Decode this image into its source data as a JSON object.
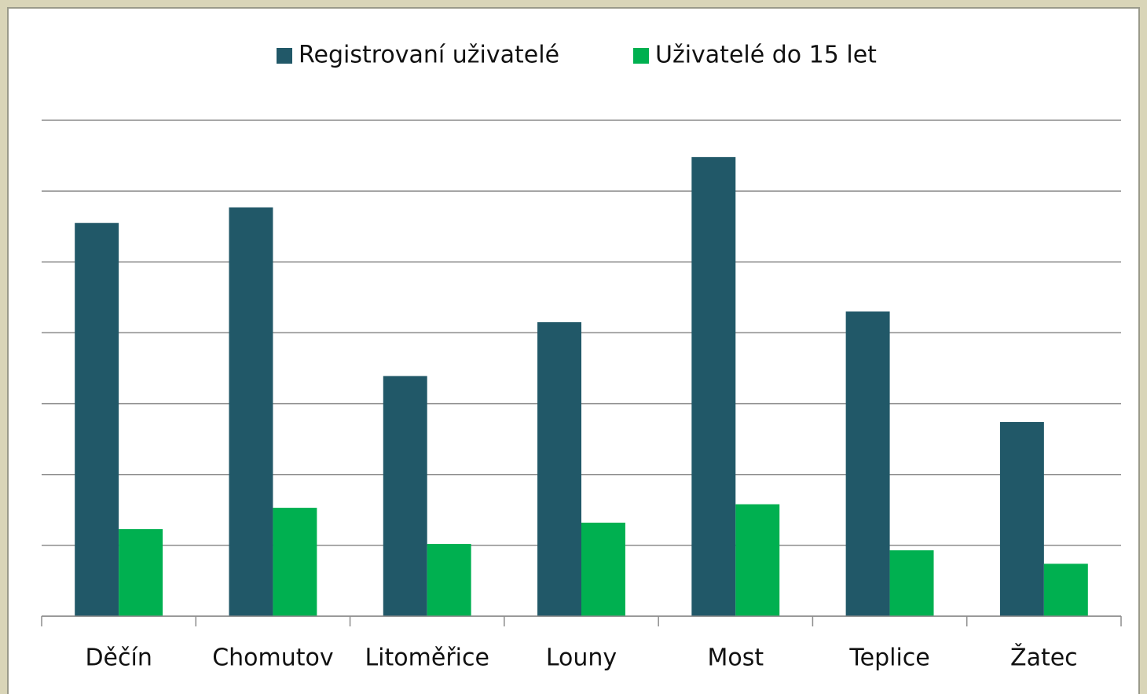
{
  "chart_data": {
    "type": "bar",
    "categories": [
      "Děčín",
      "Chomutov",
      "Litoměřice",
      "Louny",
      "Most",
      "Teplice",
      "Žatec"
    ],
    "series": [
      {
        "name": "Registrovaní uživatelé",
        "color": "#215868",
        "values": [
          5.55,
          5.77,
          3.39,
          4.15,
          6.48,
          4.3,
          2.74
        ]
      },
      {
        "name": "Uživatelé do 15 let",
        "color": "#00b050",
        "values": [
          1.23,
          1.53,
          1.02,
          1.32,
          1.58,
          0.93,
          0.74
        ]
      }
    ],
    "ylim": [
      0,
      7
    ],
    "yticks": [
      0,
      1,
      2,
      3,
      4,
      5,
      6,
      7
    ],
    "grid": true,
    "legend": "top"
  }
}
